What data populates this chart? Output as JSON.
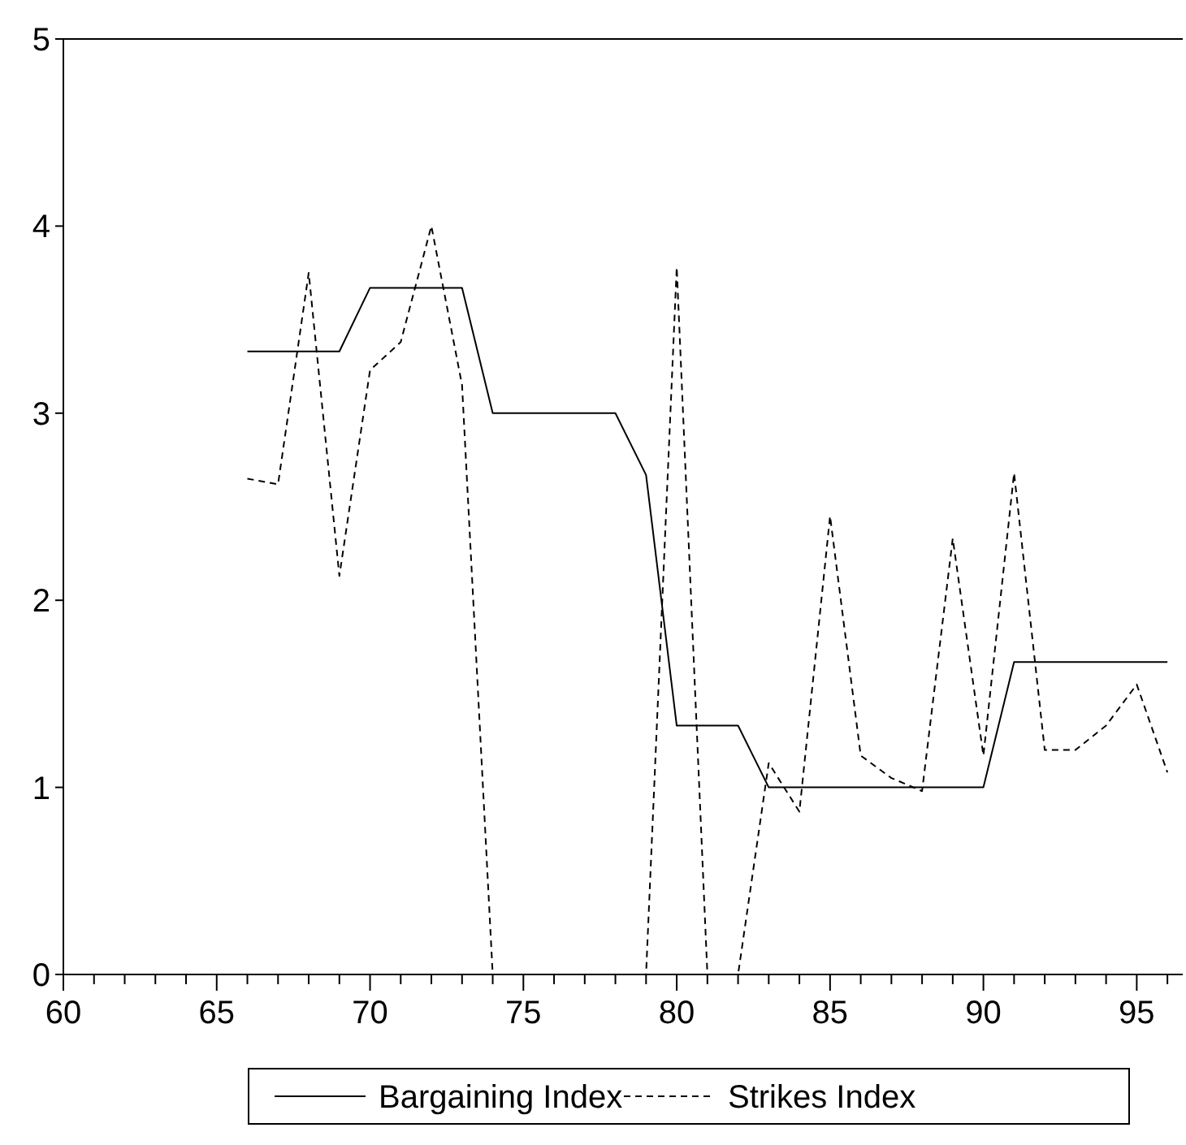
{
  "chart_data": {
    "type": "line",
    "x": [
      66,
      67,
      68,
      69,
      70,
      71,
      72,
      73,
      74,
      75,
      76,
      77,
      78,
      79,
      80,
      81,
      82,
      83,
      84,
      85,
      86,
      87,
      88,
      89,
      90,
      91,
      92,
      93,
      94,
      95,
      96
    ],
    "series": [
      {
        "name": "Bargaining Index",
        "color": "#000000",
        "line_style": "solid",
        "values": [
          3.33,
          3.33,
          3.33,
          3.33,
          3.67,
          3.67,
          3.67,
          3.67,
          3.0,
          3.0,
          3.0,
          3.0,
          3.0,
          2.67,
          1.33,
          1.33,
          1.33,
          1.0,
          1.0,
          1.0,
          1.0,
          1.0,
          1.0,
          1.0,
          1.0,
          1.67,
          1.67,
          1.67,
          1.67,
          1.67,
          1.67
        ]
      },
      {
        "name": "Strikes Index",
        "color": "#000000",
        "line_style": "dashed",
        "values": [
          2.65,
          2.62,
          3.75,
          2.13,
          3.23,
          3.38,
          4.0,
          3.15,
          0,
          0,
          0,
          0,
          0,
          0,
          3.78,
          0,
          0,
          1.13,
          0.87,
          2.45,
          1.17,
          1.05,
          0.98,
          2.33,
          1.17,
          2.68,
          1.2,
          1.2,
          1.33,
          1.55,
          1.08
        ]
      }
    ],
    "xlim": [
      60,
      96.5
    ],
    "ylim": [
      0,
      5
    ],
    "xticks": [
      60,
      {
        "value": 61,
        "label": null
      },
      {
        "value": 62,
        "label": null
      },
      {
        "value": 63,
        "label": null
      },
      {
        "value": 64,
        "label": null
      },
      65,
      {
        "value": 66,
        "label": null
      },
      {
        "value": 67,
        "label": null
      },
      {
        "value": 68,
        "label": null
      },
      {
        "value": 69,
        "label": null
      },
      70,
      {
        "value": 71,
        "label": null
      },
      {
        "value": 72,
        "label": null
      },
      {
        "value": 73,
        "label": null
      },
      {
        "value": 74,
        "label": null
      },
      75,
      {
        "value": 76,
        "label": null
      },
      {
        "value": 77,
        "label": null
      },
      {
        "value": 78,
        "label": null
      },
      {
        "value": 79,
        "label": null
      },
      80,
      {
        "value": 81,
        "label": null
      },
      {
        "value": 82,
        "label": null
      },
      {
        "value": 83,
        "label": null
      },
      {
        "value": 84,
        "label": null
      },
      85,
      {
        "value": 86,
        "label": null
      },
      {
        "value": 87,
        "label": null
      },
      {
        "value": 88,
        "label": null
      },
      {
        "value": 89,
        "label": null
      },
      90,
      {
        "value": 91,
        "label": null
      },
      {
        "value": 92,
        "label": null
      },
      {
        "value": 93,
        "label": null
      },
      {
        "value": 94,
        "label": null
      },
      95,
      {
        "value": 96,
        "label": null
      }
    ],
    "yticks": [
      0,
      1,
      2,
      3,
      4,
      5
    ],
    "grid": false,
    "legend": "bottom",
    "marker": "none"
  }
}
